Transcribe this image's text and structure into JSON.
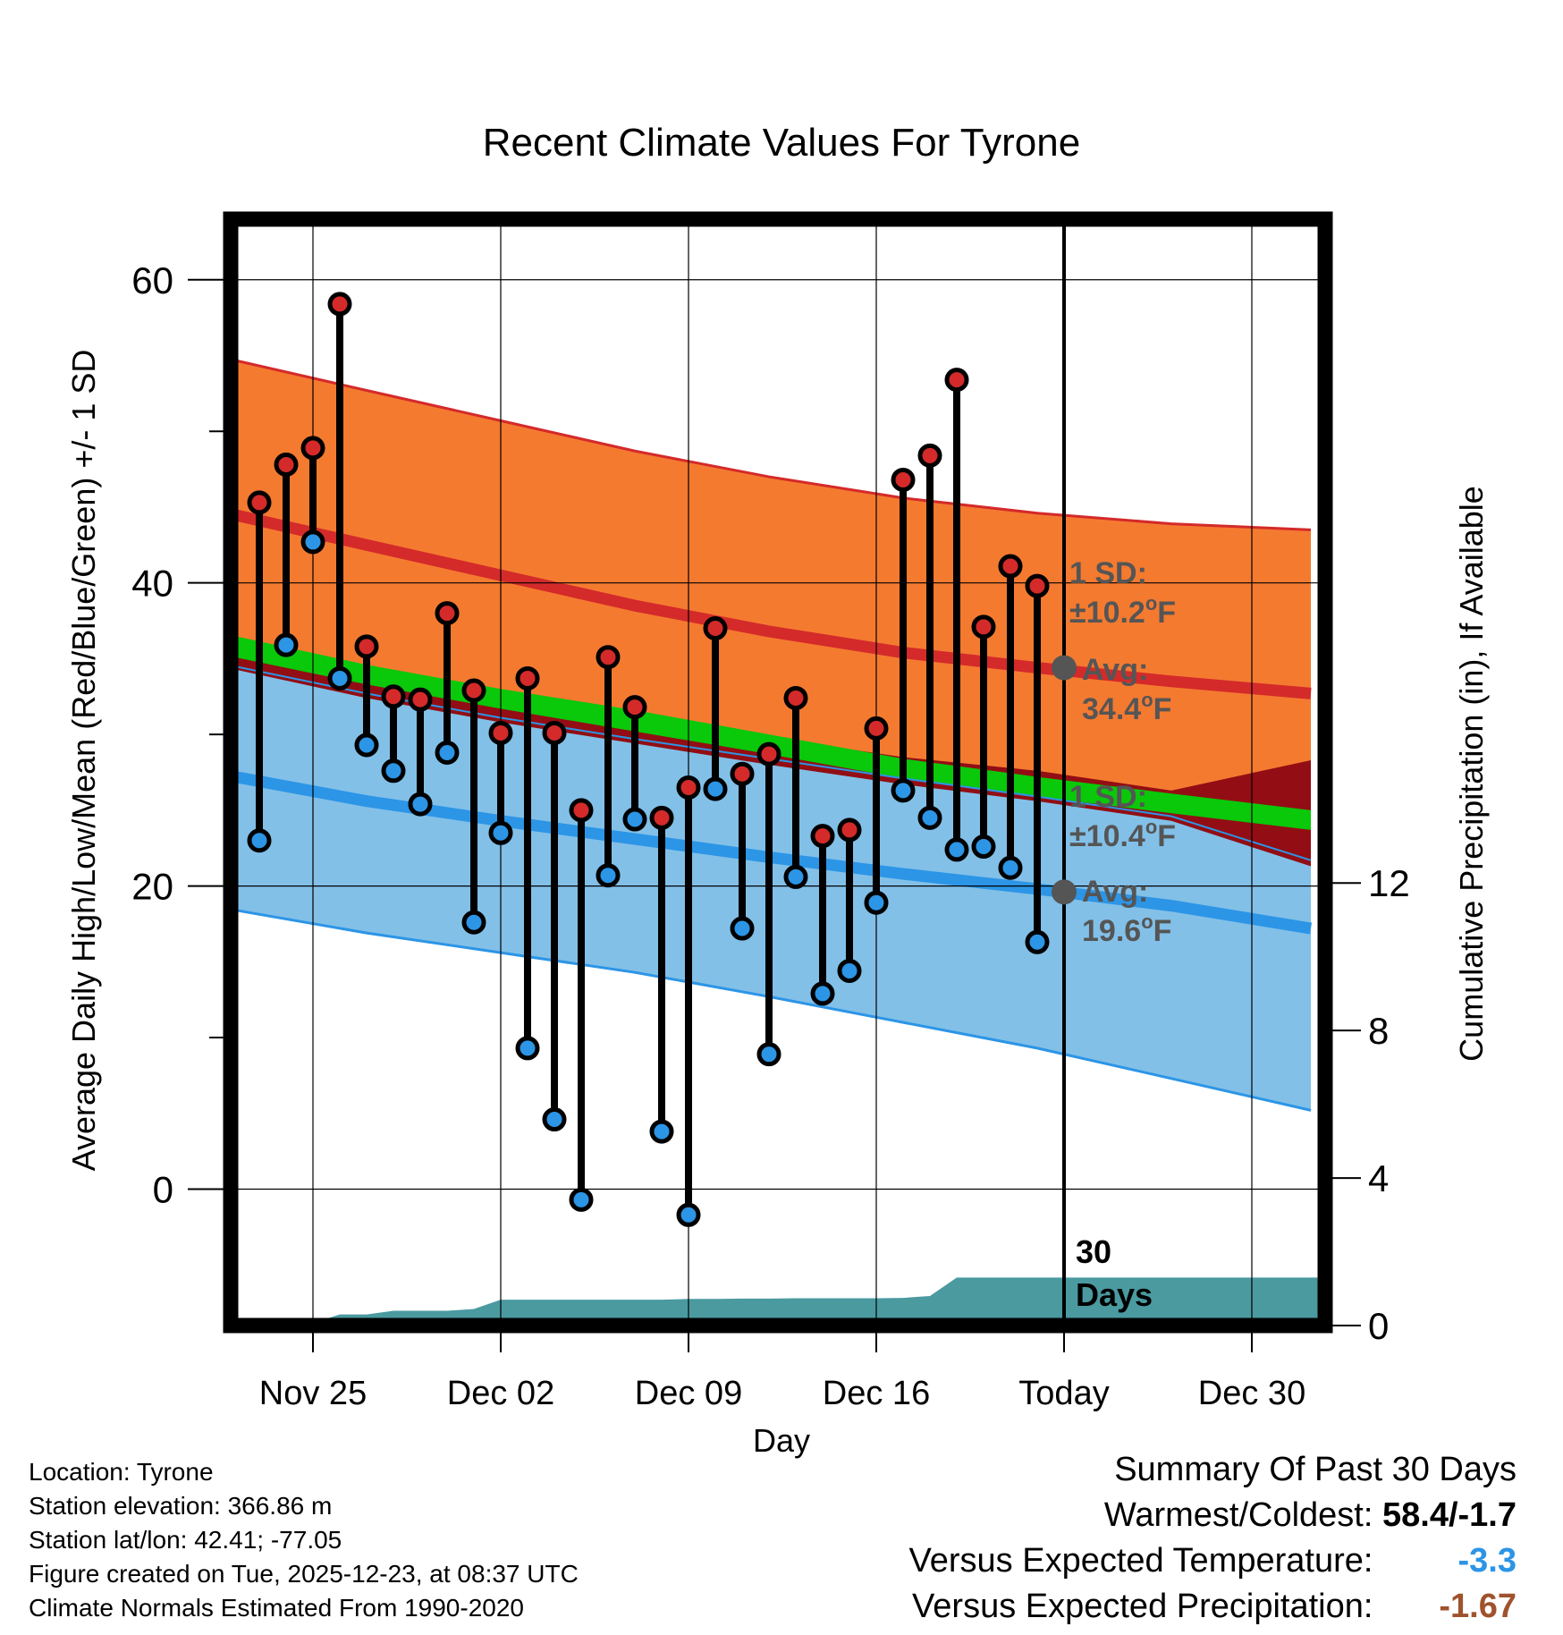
{
  "chart_data": {
    "type": "line",
    "title": "Recent Climate Values For Tyrone",
    "xlabel": "Day",
    "ylabel": "Average Daily High/Low/Mean (Red/Blue/Green) +/- 1 SD",
    "y2label": "Cumulative Precipitation (in), If Available",
    "ylim": [
      -9,
      64
    ],
    "y2lim": [
      0,
      30
    ],
    "xlim": [
      -3.8,
      37.5
    ],
    "yticks": [
      0,
      20,
      40,
      60
    ],
    "y2ticks": [
      0,
      4,
      8,
      12
    ],
    "xticks": [
      {
        "day": 0,
        "label": "Nov 25"
      },
      {
        "day": 7,
        "label": "Dec 02"
      },
      {
        "day": 14,
        "label": "Dec 09"
      },
      {
        "day": 21,
        "label": "Dec 16"
      },
      {
        "day": 28,
        "label": "Today"
      },
      {
        "day": 35,
        "label": "Dec 30"
      }
    ],
    "today_day": 28,
    "grid": true,
    "normals": {
      "x": [
        -3.2,
        2,
        7,
        12,
        17,
        22,
        27,
        32,
        37.2
      ],
      "high_mean": [
        44.6,
        42.5,
        40.5,
        38.5,
        36.8,
        35.4,
        34.4,
        33.5,
        32.7
      ],
      "high_upper": [
        54.8,
        52.7,
        50.7,
        48.7,
        47.0,
        45.6,
        44.6,
        43.9,
        43.5
      ],
      "low_mean": [
        27.3,
        25.6,
        24.3,
        23.1,
        21.9,
        20.8,
        19.8,
        18.7,
        17.2
      ],
      "low_lower": [
        18.5,
        16.9,
        15.6,
        14.3,
        12.7,
        11.0,
        9.3,
        7.3,
        5.2
      ],
      "mean_upper": [
        36.6,
        34.6,
        33.0,
        31.6,
        30.0,
        28.4,
        27.2,
        26.1,
        25.0
      ],
      "mean_lower": [
        35.2,
        33.3,
        31.7,
        30.2,
        28.7,
        27.1,
        25.9,
        24.8,
        23.7
      ],
      "high_band_lower": [
        34.4,
        32.4,
        30.8,
        29.4,
        28.0,
        26.7,
        25.6,
        24.3,
        21.3
      ],
      "low_band_upper": [
        34.6,
        32.7,
        31.1,
        29.7,
        28.4,
        27.1,
        25.9,
        24.6,
        21.7
      ],
      "band_mix_upper": [
        35.6,
        33.8,
        32.4,
        31.0,
        29.8,
        28.5,
        27.6,
        26.3,
        28.3
      ]
    },
    "series": [
      {
        "name": "High",
        "color": "#d42a2a",
        "days": [
          -2,
          -1,
          0,
          1,
          2,
          3,
          4,
          5,
          6,
          7,
          8,
          9,
          10,
          11,
          12,
          13,
          14,
          15,
          16,
          17,
          18,
          19,
          20,
          21,
          22,
          23,
          24,
          25,
          26,
          27
        ],
        "values": [
          45.3,
          47.8,
          48.9,
          58.4,
          35.8,
          32.5,
          32.3,
          38.0,
          32.9,
          30.1,
          33.7,
          30.1,
          25.0,
          35.1,
          31.8,
          24.5,
          26.5,
          37.0,
          27.4,
          28.7,
          32.4,
          23.3,
          23.7,
          30.4,
          46.8,
          48.4,
          53.4,
          37.1,
          41.1,
          39.8
        ]
      },
      {
        "name": "Low",
        "color": "#2c95e6",
        "days": [
          -2,
          -1,
          0,
          1,
          2,
          3,
          4,
          5,
          6,
          7,
          8,
          9,
          10,
          11,
          12,
          13,
          14,
          15,
          16,
          17,
          18,
          19,
          20,
          21,
          22,
          23,
          24,
          25,
          26,
          27
        ],
        "values": [
          23.0,
          35.9,
          42.7,
          33.7,
          29.3,
          27.6,
          25.4,
          28.8,
          17.6,
          23.5,
          9.3,
          4.6,
          -0.7,
          20.7,
          24.4,
          3.8,
          -1.7,
          26.4,
          17.2,
          8.9,
          20.6,
          12.9,
          14.4,
          18.9,
          26.3,
          24.5,
          22.4,
          22.6,
          21.2,
          16.3
        ]
      }
    ],
    "precip": {
      "name": "Cumulative Precipitation",
      "color": "#4a9aa0",
      "days": [
        -3.8,
        -0.3,
        1,
        2,
        3,
        4,
        5,
        6,
        7,
        8,
        9,
        10,
        11,
        12,
        13,
        14,
        15,
        16,
        17,
        18,
        19,
        20,
        21,
        22,
        23,
        24,
        38
      ],
      "values": [
        0,
        0,
        0.3,
        0.3,
        0.4,
        0.4,
        0.4,
        0.45,
        0.7,
        0.7,
        0.7,
        0.7,
        0.7,
        0.7,
        0.7,
        0.72,
        0.72,
        0.73,
        0.73,
        0.74,
        0.74,
        0.74,
        0.74,
        0.75,
        0.8,
        1.3,
        1.3
      ]
    },
    "annotations": {
      "high_sd_line1": "1 SD:",
      "high_sd_line2": "±10.2",
      "high_avg_line1": "Avg:",
      "high_avg_line2": "34.4",
      "low_sd_line1": "1 SD:",
      "low_sd_line2": "±10.4",
      "low_avg_line1": "Avg:",
      "low_avg_line2": "19.6",
      "deg_unit": "o",
      "temp_unit": "F",
      "window_line1": "30",
      "window_line2": "Days"
    }
  },
  "info": {
    "location": "Location: Tyrone",
    "elevation": "Station elevation: 366.86 m",
    "latlon": "Station lat/lon: 42.41; -77.05",
    "created": "Figure created on Tue, 2025-12-23, at 08:37 UTC",
    "normals": "Climate Normals Estimated From 1990-2020"
  },
  "summary": {
    "title": "Summary Of Past 30 Days",
    "warm_label": "Warmest/Coldest:",
    "warm_value": "58.4/-1.7",
    "temp_label": "Versus Expected Temperature:",
    "temp_value": "-3.3",
    "temp_color": "#2c95e6",
    "precip_label": "Versus Expected Precipitation:",
    "precip_value": "-1.67",
    "precip_color": "#a0522d"
  },
  "colors": {
    "high_band": "#f47a30",
    "high_line": "#d42a2a",
    "dark_band": "#920e14",
    "mean_line": "#0ac80a",
    "low_band": "#82c0e8",
    "low_line": "#2c95e6",
    "annotation": "#555555"
  }
}
